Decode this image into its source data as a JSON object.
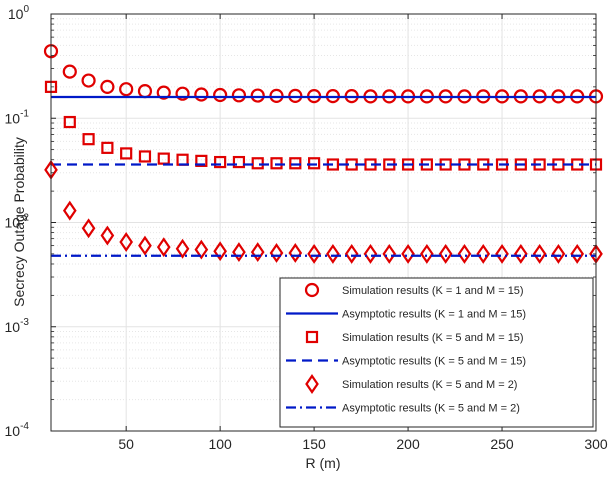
{
  "chart_data": {
    "type": "scatter",
    "title": "",
    "xlabel": "R (m)",
    "ylabel": "Secrecy Outage Probability",
    "xlim": [
      10,
      300
    ],
    "ylim": [
      0.0001,
      1
    ],
    "yscale": "log",
    "grid": true,
    "legend_position": "bottom-right",
    "x_ticks": [
      {
        "value": 50,
        "label": "50"
      },
      {
        "value": 100,
        "label": "100"
      },
      {
        "value": 150,
        "label": "150"
      },
      {
        "value": 200,
        "label": "200"
      },
      {
        "value": 250,
        "label": "250"
      },
      {
        "value": 300,
        "label": "300"
      }
    ],
    "y_ticks": [
      {
        "value": 0.0001,
        "base": "10",
        "exp": "-4"
      },
      {
        "value": 0.001,
        "base": "10",
        "exp": "-3"
      },
      {
        "value": 0.01,
        "base": "10",
        "exp": "-2"
      },
      {
        "value": 0.1,
        "base": "10",
        "exp": "-1"
      },
      {
        "value": 1,
        "base": "10",
        "exp": "0"
      }
    ],
    "series": [
      {
        "name": "Simulation results (K = 1 and M = 15)",
        "kind": "marker",
        "marker": "circle",
        "color": "#e00000",
        "x": [
          10,
          20,
          30,
          40,
          50,
          60,
          70,
          80,
          90,
          100,
          110,
          120,
          130,
          140,
          150,
          160,
          170,
          180,
          190,
          200,
          210,
          220,
          230,
          240,
          250,
          260,
          270,
          280,
          290,
          300
        ],
        "y": [
          0.44,
          0.28,
          0.23,
          0.2,
          0.19,
          0.182,
          0.176,
          0.172,
          0.169,
          0.167,
          0.166,
          0.165,
          0.164,
          0.164,
          0.163,
          0.163,
          0.163,
          0.162,
          0.162,
          0.162,
          0.162,
          0.162,
          0.162,
          0.162,
          0.162,
          0.162,
          0.162,
          0.162,
          0.162,
          0.162
        ]
      },
      {
        "name": "Asymptotic results (K = 1 and M = 15)",
        "kind": "line",
        "dash": "solid",
        "color": "#0019c8",
        "x": [
          10,
          300
        ],
        "y": [
          0.16,
          0.16
        ]
      },
      {
        "name": "Simulation results (K = 5 and M = 15)",
        "kind": "marker",
        "marker": "square",
        "color": "#e00000",
        "x": [
          10,
          20,
          30,
          40,
          50,
          60,
          70,
          80,
          90,
          100,
          110,
          120,
          130,
          140,
          150,
          160,
          170,
          180,
          190,
          200,
          210,
          220,
          230,
          240,
          250,
          260,
          270,
          280,
          290,
          300
        ],
        "y": [
          0.2,
          0.092,
          0.063,
          0.052,
          0.046,
          0.043,
          0.041,
          0.04,
          0.039,
          0.038,
          0.038,
          0.037,
          0.037,
          0.037,
          0.037,
          0.036,
          0.036,
          0.036,
          0.036,
          0.036,
          0.036,
          0.036,
          0.036,
          0.036,
          0.036,
          0.036,
          0.036,
          0.036,
          0.036,
          0.036
        ]
      },
      {
        "name": "Asymptotic results (K = 5 and M = 15)",
        "kind": "line",
        "dash": "dashed",
        "color": "#0019c8",
        "x": [
          10,
          300
        ],
        "y": [
          0.036,
          0.036
        ]
      },
      {
        "name": "Simulation results (K = 5 and M = 2)",
        "kind": "marker",
        "marker": "diamond",
        "color": "#e00000",
        "x": [
          10,
          20,
          30,
          40,
          50,
          60,
          70,
          80,
          90,
          100,
          110,
          120,
          130,
          140,
          150,
          160,
          170,
          180,
          190,
          200,
          210,
          220,
          230,
          240,
          250,
          260,
          270,
          280,
          290,
          300
        ],
        "y": [
          0.032,
          0.013,
          0.0088,
          0.0075,
          0.0065,
          0.006,
          0.0058,
          0.0056,
          0.0055,
          0.0053,
          0.0052,
          0.0052,
          0.0051,
          0.0051,
          0.005,
          0.005,
          0.005,
          0.005,
          0.005,
          0.005,
          0.005,
          0.005,
          0.005,
          0.005,
          0.005,
          0.005,
          0.005,
          0.005,
          0.005,
          0.005
        ]
      },
      {
        "name": "Asymptotic results (K = 5 and M = 2)",
        "kind": "line",
        "dash": "dashdot",
        "color": "#0019c8",
        "x": [
          10,
          300
        ],
        "y": [
          0.0048,
          0.0048
        ]
      }
    ]
  }
}
